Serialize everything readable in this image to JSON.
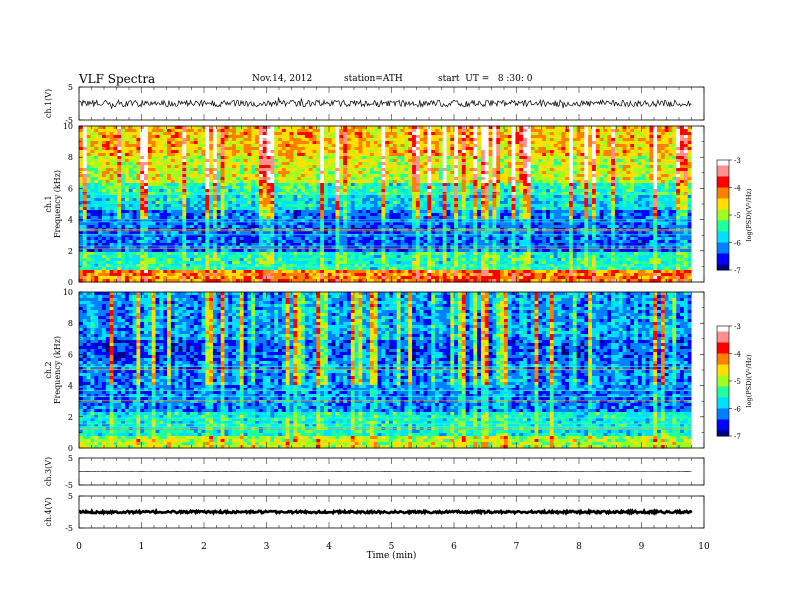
{
  "header": {
    "title": "VLF  Spectra",
    "date": "Nov.14, 2012",
    "station": "station=ATH",
    "start": "start  UT =   8 :30: 0"
  },
  "chart_data": [
    {
      "type": "line",
      "name": "ch1-waveform",
      "ylabel": "ch.1(V)",
      "ylim": [
        -5,
        5
      ],
      "yticks": [
        "5",
        "-5"
      ],
      "xlim": [
        0,
        10
      ],
      "baseline": 0,
      "amplitude": 1.0
    },
    {
      "type": "heatmap",
      "name": "ch1-spectrogram",
      "ylabel": "ch.1\nFrequency  (kHz)",
      "ylabel_top": "ch.1",
      "ylabel_bottom": "Frequency  (kHz)",
      "xlim": [
        0,
        9.8
      ],
      "ylim": [
        0,
        10
      ],
      "yticks": [
        "0",
        "2",
        "4",
        "6",
        "8",
        "10"
      ],
      "colorbar": {
        "label": "log(PSD)(V²/Hz)",
        "range": [
          -7,
          -3
        ],
        "ticks": [
          "-3",
          "-4",
          "-5",
          "-6",
          "-7"
        ]
      },
      "bands_khz": [
        {
          "from": 0,
          "to": 0.8,
          "level": -4.3
        },
        {
          "from": 0.8,
          "to": 2.0,
          "level": -5.6
        },
        {
          "from": 2.0,
          "to": 4.6,
          "level": -6.4
        },
        {
          "from": 4.6,
          "to": 5.6,
          "level": -5.9
        },
        {
          "from": 5.6,
          "to": 6.4,
          "level": -5.6
        },
        {
          "from": 6.4,
          "to": 8.0,
          "level": -5.0
        },
        {
          "from": 8.0,
          "to": 10.0,
          "level": -4.6
        }
      ]
    },
    {
      "type": "heatmap",
      "name": "ch2-spectrogram",
      "ylabel_top": "ch.2",
      "ylabel_bottom": "Frequency  (kHz)",
      "xlim": [
        0,
        9.8
      ],
      "ylim": [
        0,
        10
      ],
      "yticks": [
        "0",
        "2",
        "4",
        "6",
        "8",
        "10"
      ],
      "colorbar": {
        "label": "log(PSD)(V²/Hz)",
        "range": [
          -7,
          -3
        ],
        "ticks": [
          "-3",
          "-4",
          "-5",
          "-6",
          "-7"
        ]
      },
      "bands_khz": [
        {
          "from": 0,
          "to": 0.8,
          "level": -5.0
        },
        {
          "from": 0.8,
          "to": 2.4,
          "level": -5.7
        },
        {
          "from": 2.4,
          "to": 5.6,
          "level": -6.3
        },
        {
          "from": 5.6,
          "to": 7.0,
          "level": -6.5
        },
        {
          "from": 7.0,
          "to": 10.0,
          "level": -6.2
        }
      ]
    },
    {
      "type": "line",
      "name": "ch3-waveform",
      "ylabel": "ch.3(V)",
      "ylim": [
        -5,
        5
      ],
      "yticks": [
        "5",
        "-5"
      ],
      "xlim": [
        0,
        10
      ],
      "baseline": 0,
      "amplitude": 0.05
    },
    {
      "type": "line",
      "name": "ch4-waveform",
      "ylabel": "ch.4(V)",
      "ylim": [
        -5,
        5
      ],
      "yticks": [
        "5",
        "-5"
      ],
      "xlim": [
        0,
        10
      ],
      "baseline": 0,
      "amplitude": 0.35
    }
  ],
  "x_axis": {
    "label": "Time  (min)",
    "ticks": [
      "0",
      "1",
      "2",
      "3",
      "4",
      "5",
      "6",
      "7",
      "8",
      "9",
      "10"
    ]
  },
  "colormap": [
    "#000080",
    "#0000ff",
    "#0080ff",
    "#00e0ff",
    "#20ffa0",
    "#a0ff20",
    "#ffe000",
    "#ff8000",
    "#ff0000",
    "#ff9090",
    "#ffffff"
  ]
}
